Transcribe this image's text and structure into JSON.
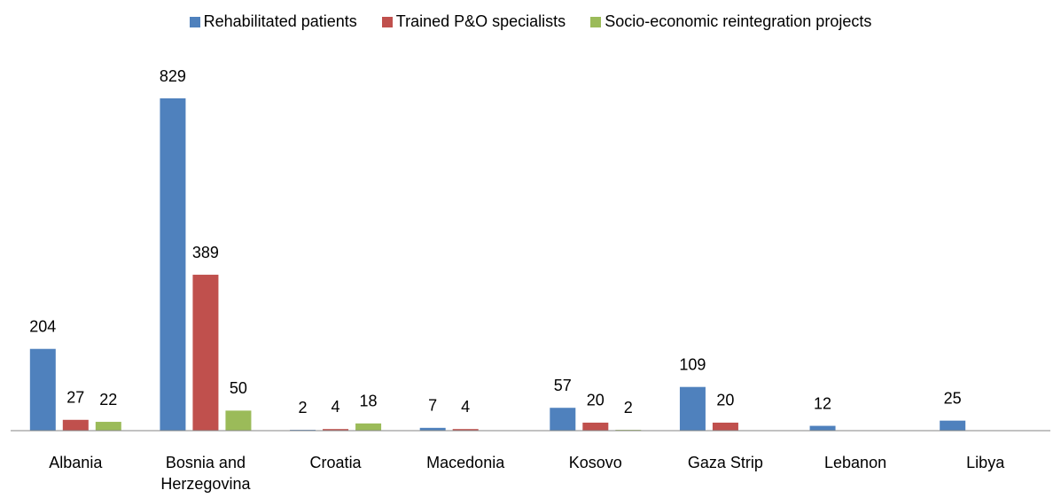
{
  "chart_data": {
    "type": "bar",
    "categories": [
      "Albania",
      "Bosnia and Herzegovina",
      "Croatia",
      "Macedonia",
      "Kosovo",
      "Gaza Strip",
      "Lebanon",
      "Libya"
    ],
    "series": [
      {
        "name": "Rehabilitated patients",
        "color": "#4f81bd",
        "values": [
          204,
          829,
          2,
          7,
          57,
          109,
          12,
          25
        ]
      },
      {
        "name": "Trained P&O specialists",
        "color": "#c0504d",
        "values": [
          27,
          389,
          4,
          4,
          20,
          20,
          null,
          null
        ]
      },
      {
        "name": "Socio-economic reintegration projects",
        "color": "#9bbb59",
        "values": [
          22,
          50,
          18,
          null,
          2,
          null,
          null,
          null
        ]
      }
    ],
    "legend": "top"
  }
}
